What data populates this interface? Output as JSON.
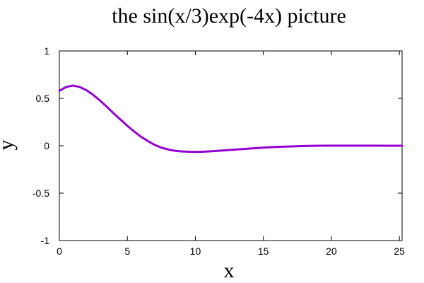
{
  "chart_data": {
    "type": "line",
    "title": "the sin(x/3)exp(-4x) picture",
    "xlabel": "x",
    "ylabel": "y",
    "xlim": [
      0,
      25.2
    ],
    "ylim": [
      -1,
      1
    ],
    "x_ticks": [
      0,
      5,
      10,
      15,
      20,
      25
    ],
    "y_ticks": [
      -1,
      -0.5,
      0,
      0.5,
      1
    ],
    "x_tick_labels": [
      "0",
      "5",
      "10",
      "15",
      "20",
      "25"
    ],
    "y_tick_labels": [
      "-1",
      "-0.5",
      "0",
      "0.5",
      "1"
    ],
    "grid": false,
    "legend": "none",
    "series": [
      {
        "color": "#9400d3",
        "x": [
          0,
          0.5,
          1,
          1.5,
          2,
          2.5,
          3,
          3.5,
          4,
          4.5,
          5,
          5.5,
          6,
          6.5,
          7,
          7.5,
          8,
          8.5,
          9,
          9.5,
          10,
          10.5,
          11,
          11.5,
          12,
          12.5,
          13,
          14,
          15,
          16,
          17,
          18,
          19,
          20,
          21,
          22,
          23,
          24,
          25,
          25.2
        ],
        "y": [
          0.58,
          0.62,
          0.635,
          0.62,
          0.585,
          0.535,
          0.475,
          0.41,
          0.34,
          0.275,
          0.21,
          0.15,
          0.095,
          0.05,
          0.01,
          -0.02,
          -0.04,
          -0.053,
          -0.06,
          -0.063,
          -0.064,
          -0.063,
          -0.06,
          -0.055,
          -0.05,
          -0.045,
          -0.04,
          -0.03,
          -0.02,
          -0.012,
          -0.007,
          -0.003,
          0,
          0.001,
          0.001,
          0.001,
          0.0005,
          0,
          0,
          0
        ]
      }
    ]
  }
}
